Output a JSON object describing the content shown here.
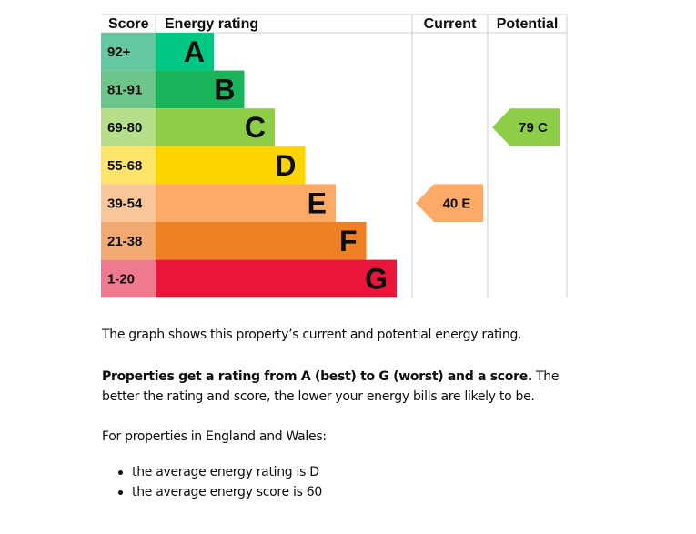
{
  "chart_data": {
    "type": "bar",
    "headers": {
      "score": "Score",
      "rating": "Energy rating",
      "current": "Current",
      "potential": "Potential"
    },
    "bands": [
      {
        "letter": "A",
        "range": "92+",
        "color": "#00c781",
        "tint": "#64c8a0"
      },
      {
        "letter": "B",
        "range": "81-91",
        "color": "#19b459",
        "tint": "#6cc68c"
      },
      {
        "letter": "C",
        "range": "69-80",
        "color": "#8dce46",
        "tint": "#b7df8a"
      },
      {
        "letter": "D",
        "range": "55-68",
        "color": "#ffd500",
        "tint": "#ffe46a"
      },
      {
        "letter": "E",
        "range": "39-54",
        "color": "#fcaa65",
        "tint": "#fbc69a"
      },
      {
        "letter": "F",
        "range": "21-38",
        "color": "#ef8023",
        "tint": "#f2aa70"
      },
      {
        "letter": "G",
        "range": "1-20",
        "color": "#e9153b",
        "tint": "#ef7a90"
      }
    ],
    "current": {
      "score": 40,
      "letter": "E",
      "label": "40  E"
    },
    "potential": {
      "score": 79,
      "letter": "C",
      "label": "79  C"
    }
  },
  "text": {
    "p1": "The graph shows this property’s current and potential energy rating.",
    "p2_bold": "Properties get a rating from A (best) to G (worst) and a score.",
    "p2_rest": " The better the rating and score, the lower your energy bills are likely to be.",
    "p3": "For properties in England and Wales:",
    "bullets": [
      "the average energy rating is D",
      "the average energy score is 60"
    ]
  }
}
